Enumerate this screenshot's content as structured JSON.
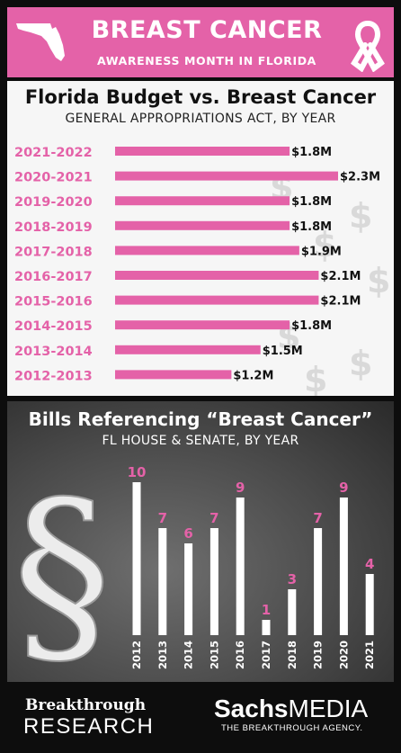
{
  "header": {
    "title": "BREAST CANCER",
    "subtitle": "AWARENESS MONTH IN FLORIDA",
    "icons": [
      "florida-map-icon",
      "awareness-ribbon-icon"
    ]
  },
  "footer": {
    "left_line1": "Breakthrough",
    "left_line2": "RESEARCH",
    "right_bold": "Sachs",
    "right_regular": "MEDIA",
    "right_tagline": "THE BREAKTHROUGH AGENCY."
  },
  "colors": {
    "accent": "#e462a8",
    "bar_white": "#ffffff",
    "panel_dark": "#4a4a4a"
  },
  "chart_data": [
    {
      "type": "bar",
      "orientation": "horizontal",
      "title": "Florida Budget vs. Breast Cancer",
      "subtitle": "GENERAL APPROPRIATIONS ACT, BY YEAR",
      "categories": [
        "2021-2022",
        "2020-2021",
        "2019-2020",
        "2018-2019",
        "2017-2018",
        "2016-2017",
        "2015-2016",
        "2014-2015",
        "2013-2014",
        "2012-2013"
      ],
      "values": [
        1.8,
        2.3,
        1.8,
        1.8,
        1.9,
        2.1,
        2.1,
        1.8,
        1.5,
        1.2
      ],
      "data_labels": [
        "$1.8M",
        "$2.3M",
        "$1.8M",
        "$1.8M",
        "$1.9M",
        "$2.1M",
        "$2.1M",
        "$1.8M",
        "$1.5M",
        "$1.2M"
      ],
      "unit": "$M",
      "xlim": [
        0,
        2.3
      ],
      "grid": false
    },
    {
      "type": "bar",
      "orientation": "vertical",
      "title": "Bills Referencing “Breast Cancer”",
      "subtitle": "FL HOUSE & SENATE, BY YEAR",
      "categories": [
        "2012",
        "2013",
        "2014",
        "2015",
        "2016",
        "2017",
        "2018",
        "2019",
        "2020",
        "2021"
      ],
      "values": [
        10,
        7,
        6,
        7,
        9,
        1,
        3,
        7,
        9,
        4
      ],
      "ylim": [
        0,
        10
      ],
      "grid": false
    }
  ]
}
